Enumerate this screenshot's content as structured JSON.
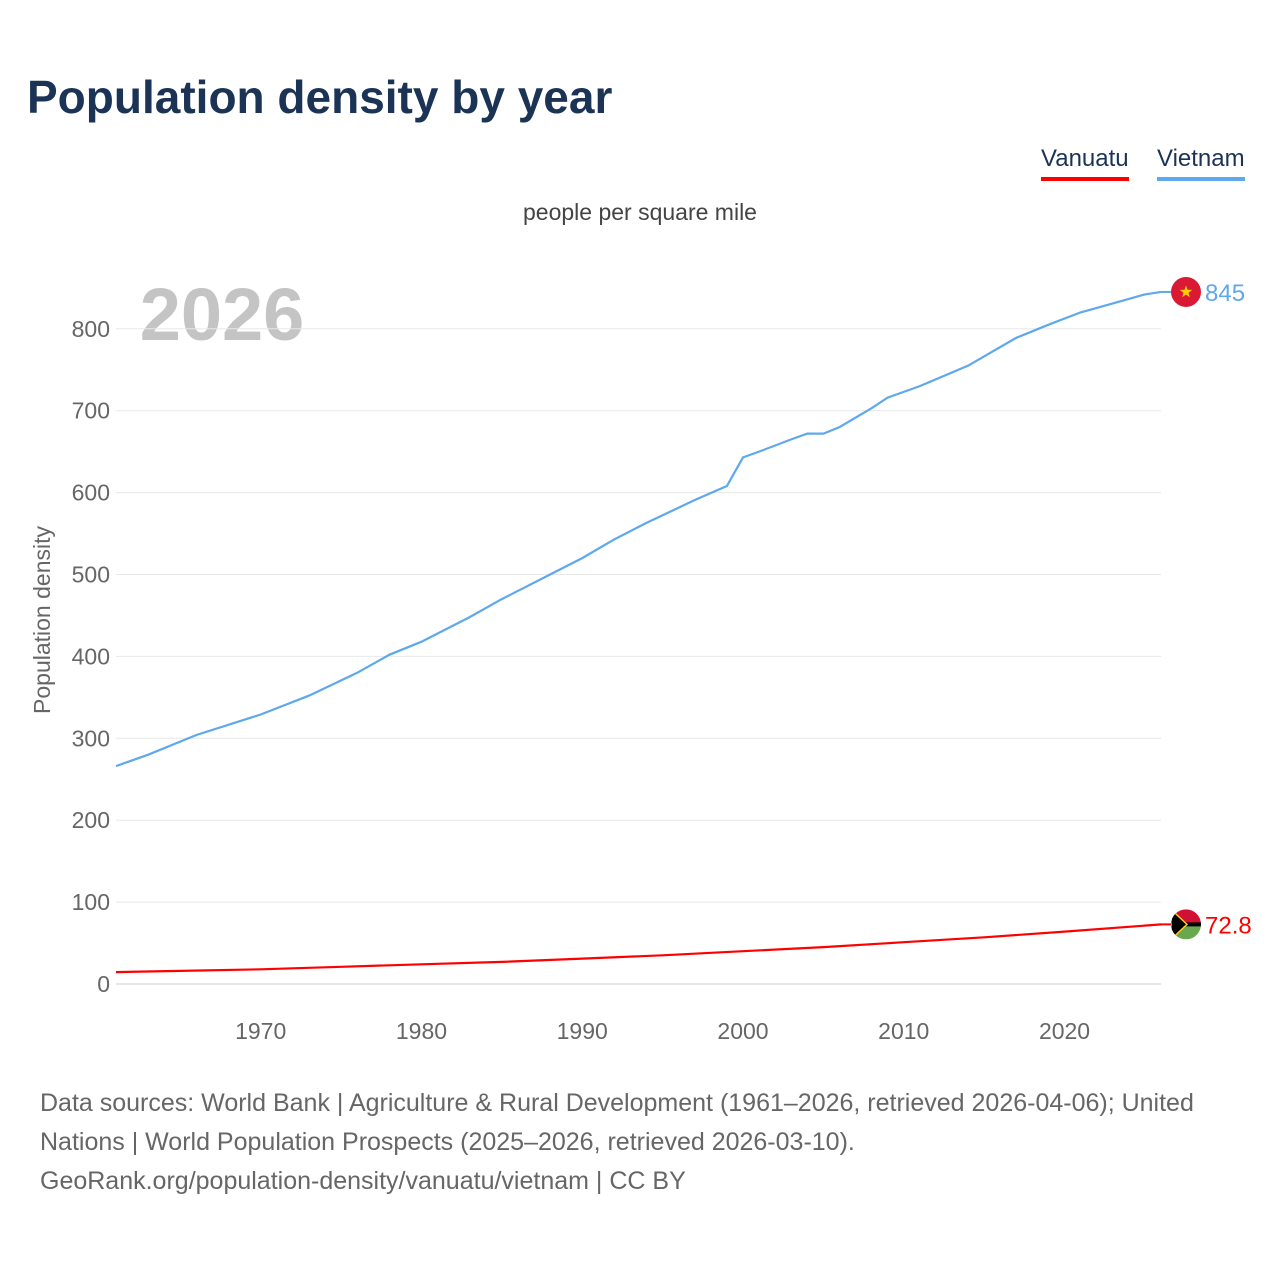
{
  "title": "Population density by year",
  "legend": [
    {
      "label": "Vanuatu",
      "color": "#ff0000"
    },
    {
      "label": "Vietnam",
      "color": "#5ea8ee"
    }
  ],
  "year_watermark": "2026",
  "sources": {
    "line1": "Data sources: World Bank | Agriculture & Rural Development (1961–2026, retrieved 2026-04-06); United Nations | World Population Prospects (2025–2026, retrieved 2026-03-10).",
    "line2": "GeoRank.org/population-density/vanuatu/vietnam | CC BY"
  },
  "chart_data": {
    "type": "line",
    "title": "Population density by year",
    "subtitle": "people per square mile",
    "xlabel": "",
    "ylabel": "Population density",
    "xlim": [
      1961,
      2026
    ],
    "ylim": [
      0,
      850
    ],
    "xticks": [
      1970,
      1980,
      1990,
      2000,
      2010,
      2020
    ],
    "yticks": [
      0,
      100,
      200,
      300,
      400,
      500,
      600,
      700,
      800
    ],
    "grid": true,
    "legend_position": "top-right",
    "series": [
      {
        "name": "Vietnam",
        "color": "#5ea8ee",
        "end_label": "845",
        "x": [
          1961,
          1963,
          1966,
          1970,
          1973,
          1976,
          1978,
          1980,
          1983,
          1985,
          1988,
          1990,
          1992,
          1994,
          1997,
          1999,
          2000,
          2001,
          2003,
          2004,
          2005,
          2006,
          2008,
          2009,
          2011,
          2014,
          2017,
          2019,
          2021,
          2023,
          2025,
          2026
        ],
        "y": [
          266,
          280,
          304,
          329,
          352,
          380,
          402,
          418,
          448,
          470,
          500,
          520,
          543,
          563,
          591,
          608,
          643,
          650,
          665,
          672,
          672,
          680,
          703,
          716,
          730,
          755,
          789,
          805,
          820,
          831,
          842,
          845
        ]
      },
      {
        "name": "Vanuatu",
        "color": "#ff0000",
        "end_label": "72.8",
        "x": [
          1961,
          1965,
          1970,
          1975,
          1980,
          1985,
          1990,
          1995,
          2000,
          2005,
          2010,
          2015,
          2020,
          2026
        ],
        "y": [
          14.5,
          16,
          18,
          21,
          24,
          27,
          31,
          35,
          40,
          45,
          51,
          57,
          64,
          72.8
        ]
      }
    ]
  }
}
